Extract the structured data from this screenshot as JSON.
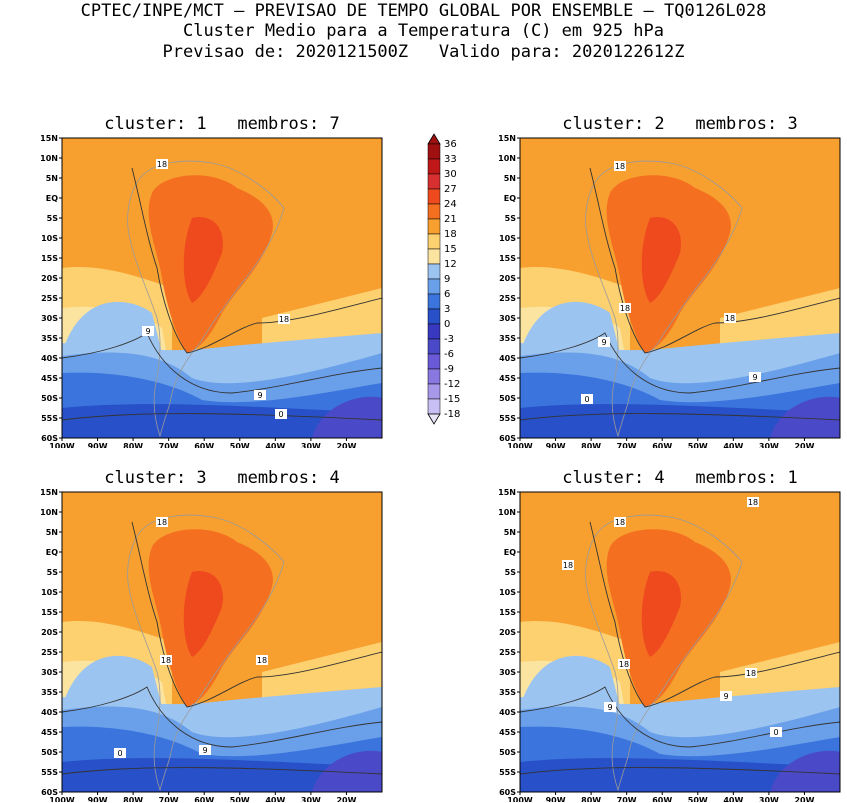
{
  "header": {
    "line1": "CPTEC/INPE/MCT – PREVISAO DE TEMPO GLOBAL POR ENSEMBLE – TQ0126L028",
    "line2": "Cluster Medio para a Temperatura (C) em 925 hPa",
    "line3": "Previsao de: 2020121500Z   Valido para: 2020122612Z"
  },
  "axes": {
    "lon_labels": [
      "100W",
      "90W",
      "80W",
      "70W",
      "60W",
      "50W",
      "40W",
      "30W",
      "20W"
    ],
    "lat_labels": [
      "15N",
      "10N",
      "5N",
      "EQ",
      "5S",
      "10S",
      "15S",
      "20S",
      "25S",
      "30S",
      "35S",
      "40S",
      "45S",
      "50S",
      "55S",
      "60S"
    ]
  },
  "colorbar": {
    "labels": [
      "36",
      "33",
      "30",
      "27",
      "24",
      "21",
      "18",
      "15",
      "12",
      "9",
      "6",
      "3",
      "0",
      "-3",
      "-6",
      "-9",
      "-12",
      "-15",
      "-18"
    ],
    "colors": [
      "#a01010",
      "#c01818",
      "#d83030",
      "#ee4a1e",
      "#f47020",
      "#f7a030",
      "#fdd070",
      "#fae4a0",
      "#9cc4f0",
      "#6aa0ea",
      "#3a74dc",
      "#2850c8",
      "#3838c0",
      "#4a4ac8",
      "#6a5ad8",
      "#8878e0",
      "#a898ea",
      "#c8c0f4"
    ]
  },
  "panels": [
    {
      "title": "cluster: 1   membros: 7",
      "contour_labels": [
        "18",
        "18",
        "9",
        "9",
        "0"
      ]
    },
    {
      "title": "cluster: 2   membros: 3",
      "contour_labels": [
        "18",
        "18",
        "18",
        "9",
        "9",
        "0"
      ]
    },
    {
      "title": "cluster: 3   membros: 4",
      "contour_labels": [
        "18",
        "18",
        "18",
        "9",
        "0"
      ]
    },
    {
      "title": "cluster: 4   membros: 1",
      "contour_labels": [
        "18",
        "18",
        "18",
        "18",
        "18",
        "9",
        "9",
        "0"
      ]
    }
  ]
}
